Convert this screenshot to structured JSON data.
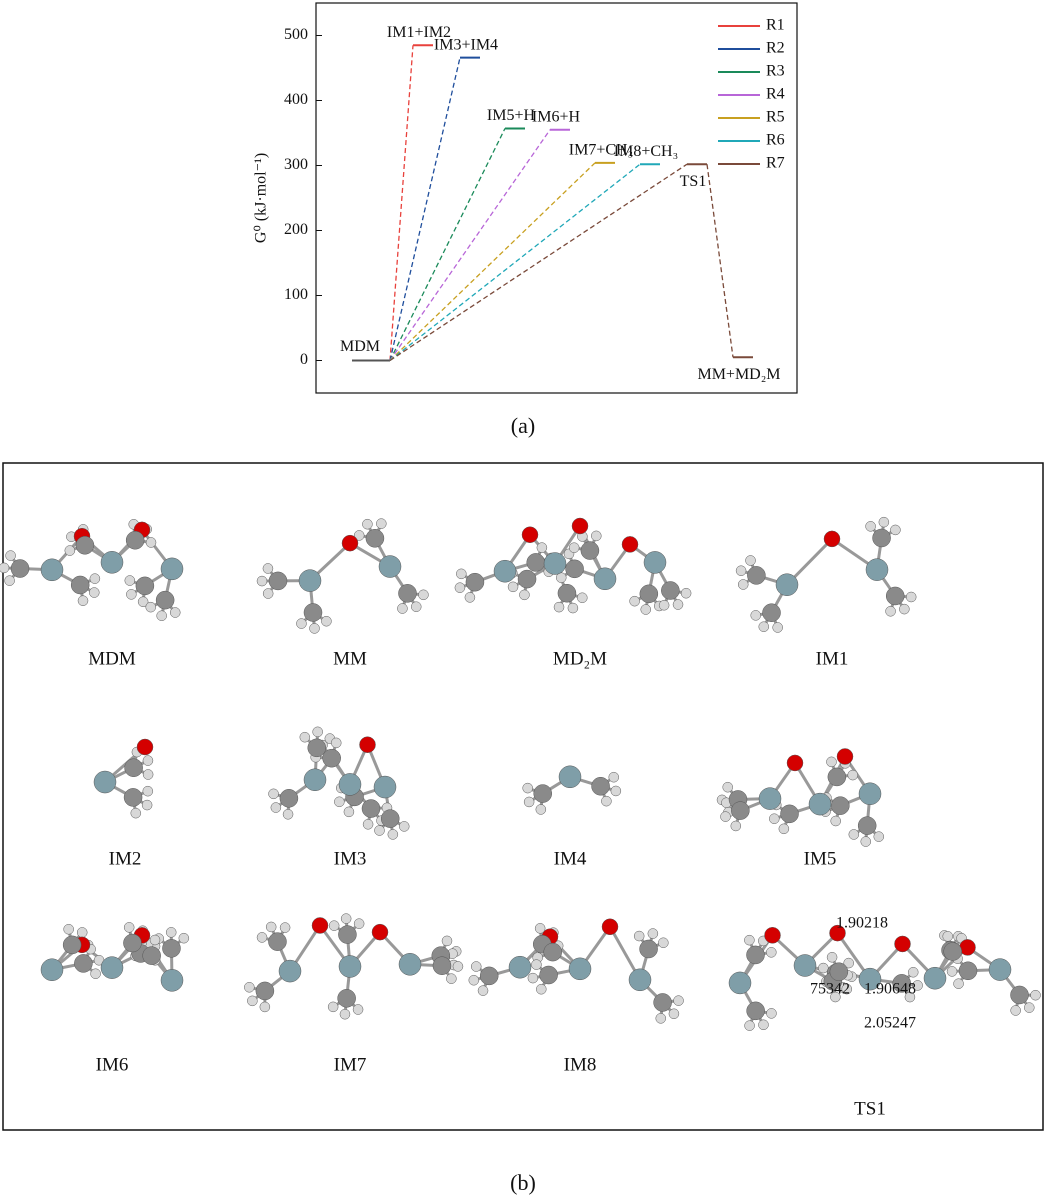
{
  "chart_data": {
    "type": "energy-profile",
    "y_label": "G⁰ (kJ·mol⁻¹)",
    "ylim": [
      -50,
      550
    ],
    "yticks": [
      0,
      100,
      200,
      300,
      400,
      500
    ],
    "start": {
      "label": "MDM",
      "value": 0,
      "color": "#555555"
    },
    "legend": "upper right",
    "series": [
      {
        "name": "R1",
        "color": "#e8413c",
        "labels": [
          "IM1+IM2"
        ],
        "values": [
          485
        ]
      },
      {
        "name": "R2",
        "color": "#1f4e9c",
        "labels": [
          "IM3+IM4"
        ],
        "values": [
          466
        ]
      },
      {
        "name": "R3",
        "color": "#1a8a5a",
        "labels": [
          "IM5+H"
        ],
        "values": [
          357
        ]
      },
      {
        "name": "R4",
        "color": "#b866d8",
        "labels": [
          "IM6+H"
        ],
        "values": [
          355
        ]
      },
      {
        "name": "R5",
        "color": "#c8a020",
        "labels": [
          "IM7+CH₃"
        ],
        "values": [
          304
        ]
      },
      {
        "name": "R6",
        "color": "#20a8b8",
        "labels": [
          "IM8+CH₃"
        ],
        "values": [
          302
        ]
      },
      {
        "name": "R7",
        "color": "#7a4a3a",
        "labels": [
          "TS1",
          "MM+MD₂M"
        ],
        "values": [
          302,
          5
        ]
      }
    ],
    "caption": "(a)"
  },
  "structures": {
    "caption": "(b)",
    "labels": [
      "MDM",
      "MM",
      "MD₂M",
      "IM1",
      "IM2",
      "IM3",
      "IM4",
      "IM5",
      "IM6",
      "IM7",
      "IM8",
      "TS1"
    ],
    "ts1_distances": [
      "1.90218",
      "75342",
      "1.90648",
      "2.05247"
    ]
  }
}
